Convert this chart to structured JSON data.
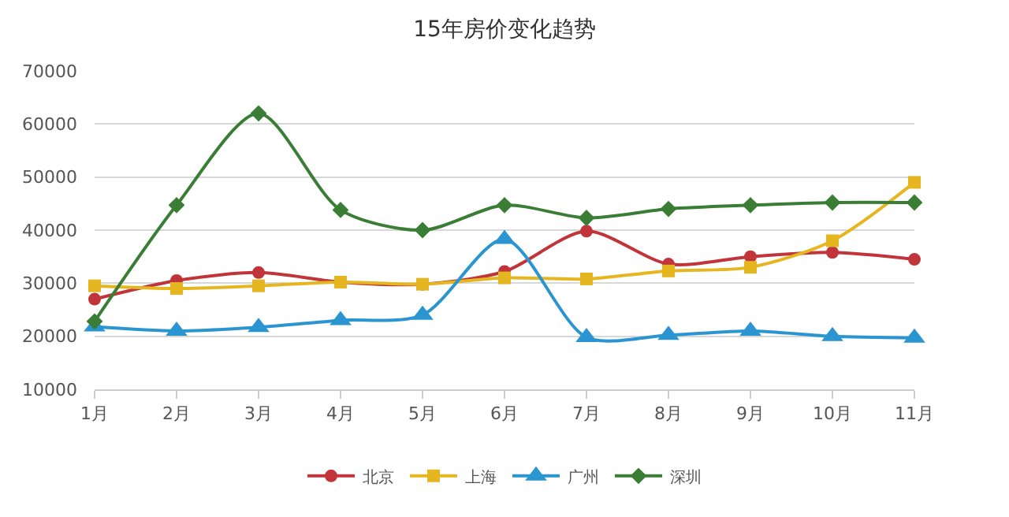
{
  "chart_data": {
    "type": "line",
    "title": "15年房价变化趋势",
    "categories": [
      "1月",
      "2月",
      "3月",
      "4月",
      "5月",
      "6月",
      "7月",
      "8月",
      "9月",
      "10月",
      "11月"
    ],
    "series": [
      {
        "name": "北京",
        "color": "#c0343a",
        "marker": "circle",
        "values": [
          27000,
          30500,
          32000,
          30200,
          29800,
          32200,
          39800,
          33600,
          35000,
          35800,
          34500
        ]
      },
      {
        "name": "上海",
        "color": "#e6b620",
        "marker": "square",
        "values": [
          29500,
          29000,
          29500,
          30200,
          29800,
          31000,
          30800,
          32300,
          33000,
          38000,
          49000
        ]
      },
      {
        "name": "广州",
        "color": "#2a95d0",
        "marker": "triangle",
        "values": [
          21800,
          21000,
          21700,
          23000,
          24000,
          38300,
          19800,
          20200,
          21000,
          20000,
          19700
        ]
      },
      {
        "name": "深圳",
        "color": "#3a7d35",
        "marker": "diamond",
        "values": [
          22800,
          44700,
          62000,
          43800,
          40000,
          44700,
          42300,
          44000,
          44700,
          45200,
          45200
        ]
      }
    ],
    "ylim": [
      10000,
      70000
    ],
    "yticks": [
      10000,
      20000,
      30000,
      40000,
      50000,
      60000,
      70000
    ],
    "grid": "y",
    "legend": "bottom"
  }
}
